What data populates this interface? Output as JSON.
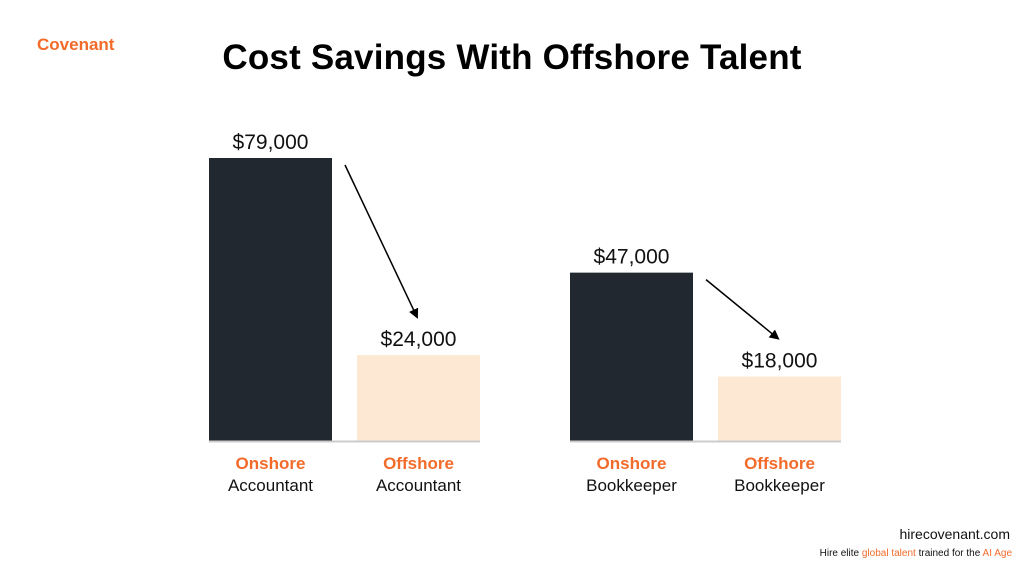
{
  "brand": "Covenant",
  "colors": {
    "accent": "#f26b2b",
    "onshore_bar": "#212830",
    "offshore_bar": "#fde9d3",
    "baseline": "#cccccc"
  },
  "chart_data": {
    "type": "bar",
    "title": "Cost Savings With Offshore Talent",
    "xlabel": "",
    "ylabel": "",
    "ylim": [
      0,
      79000
    ],
    "grid": false,
    "groups": [
      {
        "bars": [
          {
            "label_top": "Onshore",
            "label_bottom": "Accountant",
            "value": 79000,
            "value_label": "$79,000",
            "kind": "onshore"
          },
          {
            "label_top": "Offshore",
            "label_bottom": "Accountant",
            "value": 24000,
            "value_label": "$24,000",
            "kind": "offshore"
          }
        ]
      },
      {
        "bars": [
          {
            "label_top": "Onshore",
            "label_bottom": "Bookkeeper",
            "value": 47000,
            "value_label": "$47,000",
            "kind": "onshore"
          },
          {
            "label_top": "Offshore",
            "label_bottom": "Bookkeeper",
            "value": 18000,
            "value_label": "$18,000",
            "kind": "offshore"
          }
        ]
      }
    ]
  },
  "footer": {
    "url": "hirecovenant.com",
    "tagline_part1": "Hire elite ",
    "tagline_highlight1": "global talent",
    "tagline_part2": " trained for the ",
    "tagline_highlight2": "AI Age"
  }
}
